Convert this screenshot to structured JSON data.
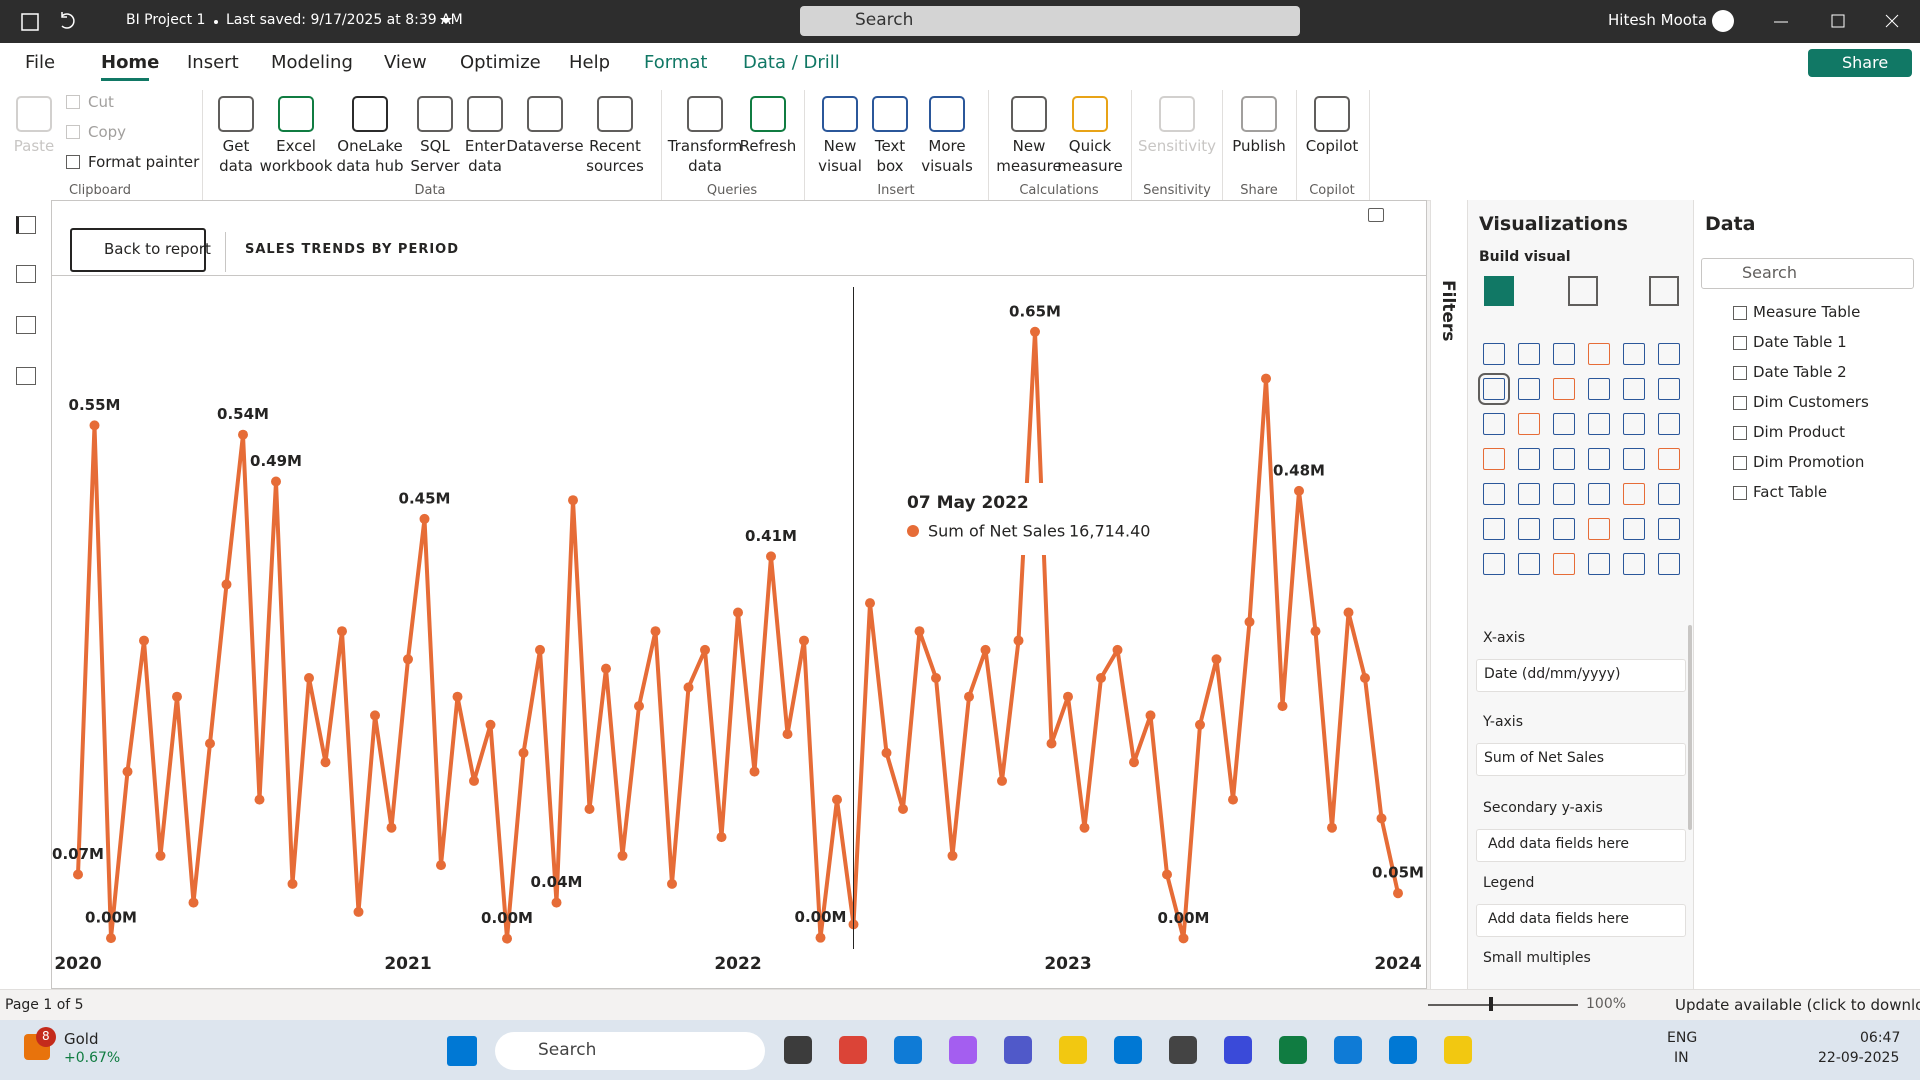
{
  "title_bar": {
    "file_name": "BI Project 1",
    "saved": "Last saved: 9/17/2025 at 8:39 AM",
    "search": "Search",
    "user": "Hitesh Moota"
  },
  "menu": {
    "tabs": [
      {
        "label": "File"
      },
      {
        "label": "Home",
        "selected": true
      },
      {
        "label": "Insert"
      },
      {
        "label": "Modeling"
      },
      {
        "label": "View"
      },
      {
        "label": "Optimize"
      },
      {
        "label": "Help"
      },
      {
        "label": "Format",
        "contextual": true
      },
      {
        "label": "Data / Drill",
        "contextual": true
      }
    ],
    "share": "Share"
  },
  "ribbon": {
    "groups": [
      {
        "name": "Clipboard",
        "large": [
          {
            "lines": [
              "Paste"
            ],
            "disabled": true
          }
        ],
        "small": [
          {
            "label": "Cut",
            "disabled": true
          },
          {
            "label": "Copy",
            "disabled": true
          },
          {
            "label": "Format painter"
          }
        ]
      },
      {
        "name": "Data",
        "large": [
          {
            "lines": [
              "Get",
              "data"
            ]
          },
          {
            "lines": [
              "Excel",
              "workbook"
            ]
          },
          {
            "lines": [
              "OneLake",
              "data hub"
            ]
          },
          {
            "lines": [
              "SQL",
              "Server"
            ]
          },
          {
            "lines": [
              "Enter",
              "data"
            ]
          },
          {
            "lines": [
              "Dataverse"
            ]
          },
          {
            "lines": [
              "Recent",
              "sources"
            ]
          }
        ]
      },
      {
        "name": "Queries",
        "large": [
          {
            "lines": [
              "Transform",
              "data"
            ]
          },
          {
            "lines": [
              "Refresh"
            ]
          }
        ]
      },
      {
        "name": "Insert",
        "large": [
          {
            "lines": [
              "New",
              "visual"
            ]
          },
          {
            "lines": [
              "Text",
              "box"
            ]
          },
          {
            "lines": [
              "More",
              "visuals"
            ]
          }
        ]
      },
      {
        "name": "Calculations",
        "large": [
          {
            "lines": [
              "New",
              "measure"
            ]
          },
          {
            "lines": [
              "Quick",
              "measure"
            ]
          }
        ]
      },
      {
        "name": "Sensitivity",
        "large": [
          {
            "lines": [
              "Sensitivity"
            ],
            "disabled": true
          }
        ]
      },
      {
        "name": "Share",
        "large": [
          {
            "lines": [
              "Publish"
            ]
          }
        ]
      },
      {
        "name": "Copilot",
        "large": [
          {
            "lines": [
              "Copilot"
            ]
          }
        ]
      }
    ]
  },
  "report": {
    "back": "Back to report",
    "title": "SALES TRENDS BY PERIOD"
  },
  "chart_data": {
    "type": "line",
    "xlim": [
      2020,
      2024
    ],
    "xticks": [
      2020,
      2021,
      2022,
      2023,
      2024
    ],
    "ylim": [
      0,
      700000
    ],
    "x": [
      2020,
      2020.05,
      2020.1,
      2020.15,
      2020.2,
      2020.25,
      2020.3,
      2020.35,
      2020.4,
      2020.45,
      2020.5,
      2020.55,
      2020.6,
      2020.65,
      2020.7,
      2020.75,
      2020.8,
      2020.85,
      2020.9,
      2020.95,
      2021,
      2021.05,
      2021.1,
      2021.15,
      2021.2,
      2021.25,
      2021.3,
      2021.35,
      2021.4,
      2021.45,
      2021.5,
      2021.55,
      2021.6,
      2021.65,
      2021.7,
      2021.75,
      2021.8,
      2021.85,
      2021.9,
      2021.95,
      2022,
      2022.05,
      2022.1,
      2022.15,
      2022.2,
      2022.25,
      2022.3,
      2022.35,
      2022.4,
      2022.45,
      2022.5,
      2022.55,
      2022.6,
      2022.65,
      2022.7,
      2022.75,
      2022.8,
      2022.85,
      2022.9,
      2022.95,
      2023,
      2023.05,
      2023.1,
      2023.15,
      2023.2,
      2023.25,
      2023.3,
      2023.35,
      2023.4,
      2023.45,
      2023.5,
      2023.55,
      2023.6,
      2023.65,
      2023.7,
      2023.75,
      2023.8,
      2023.85,
      2023.9,
      2023.95,
      2024
    ],
    "series": [
      {
        "name": "Sum of Net Sales",
        "color": "#e66c37",
        "values": [
          70000,
          550000,
          2000,
          180000,
          320000,
          90000,
          260000,
          40000,
          210000,
          380000,
          540000,
          150000,
          490000,
          60000,
          280000,
          190000,
          330000,
          30000,
          240000,
          120000,
          300000,
          450000,
          80000,
          260000,
          170000,
          230000,
          1500,
          200000,
          310000,
          40000,
          470000,
          140000,
          290000,
          90000,
          250000,
          330000,
          60000,
          270000,
          310000,
          110000,
          350000,
          180000,
          410000,
          220000,
          320000,
          2500,
          150000,
          16714.4,
          360000,
          200000,
          140000,
          330000,
          280000,
          90000,
          260000,
          310000,
          170000,
          320000,
          650000,
          210000,
          260000,
          120000,
          280000,
          310000,
          190000,
          240000,
          70000,
          1800,
          230000,
          300000,
          150000,
          340000,
          600000,
          250000,
          480000,
          330000,
          120000,
          350000,
          280000,
          130000,
          50000
        ],
        "value_labels": [
          "0.07M",
          "0.55M",
          "0.00M",
          null,
          null,
          null,
          null,
          null,
          null,
          null,
          "0.54M",
          null,
          "0.49M",
          null,
          null,
          null,
          null,
          null,
          null,
          null,
          null,
          "0.45M",
          null,
          null,
          null,
          null,
          "0.00M",
          null,
          null,
          "0.04M",
          null,
          null,
          null,
          null,
          null,
          null,
          null,
          null,
          null,
          null,
          null,
          null,
          "0.41M",
          null,
          null,
          "0.00M",
          null,
          null,
          null,
          null,
          null,
          null,
          null,
          null,
          null,
          null,
          null,
          null,
          "0.65M",
          null,
          null,
          null,
          null,
          null,
          null,
          null,
          null,
          "0.00M",
          null,
          null,
          null,
          null,
          null,
          null,
          "0.48M",
          null,
          null,
          null,
          null,
          null,
          "0.05M"
        ]
      }
    ],
    "tooltip": {
      "date": "07 May 2022",
      "measure": "Sum of Net Sales",
      "value": 16714.4,
      "value_label": "16,714.40"
    }
  },
  "filters": {
    "label": "Filters"
  },
  "visualizations": {
    "title": "Visualizations",
    "build": "Build visual",
    "wells": [
      {
        "name": "X-axis",
        "field": "Date (dd/mm/yyyy)"
      },
      {
        "name": "Y-axis",
        "field": "Sum of Net Sales"
      },
      {
        "name": "Secondary y-axis",
        "placeholder": "Add data fields here"
      },
      {
        "name": "Legend",
        "placeholder": "Add data fields here"
      },
      {
        "name": "Small multiples"
      }
    ]
  },
  "data_pane": {
    "title": "Data",
    "search": "Search",
    "tables": [
      "Measure Table",
      "Date Table 1",
      "Date Table 2",
      "Dim Customers",
      "Dim Product",
      "Dim Promotion",
      "Fact Table"
    ]
  },
  "status": {
    "page": "Page 1 of 5",
    "zoom": "100%",
    "update": "Update available (click to download)"
  },
  "taskbar": {
    "ticker": "Gold",
    "change": "+0.67%",
    "badge": 8,
    "search": "Search",
    "lang": "ENG",
    "region": "IN",
    "time": "06:47",
    "date": "22-09-2025"
  }
}
